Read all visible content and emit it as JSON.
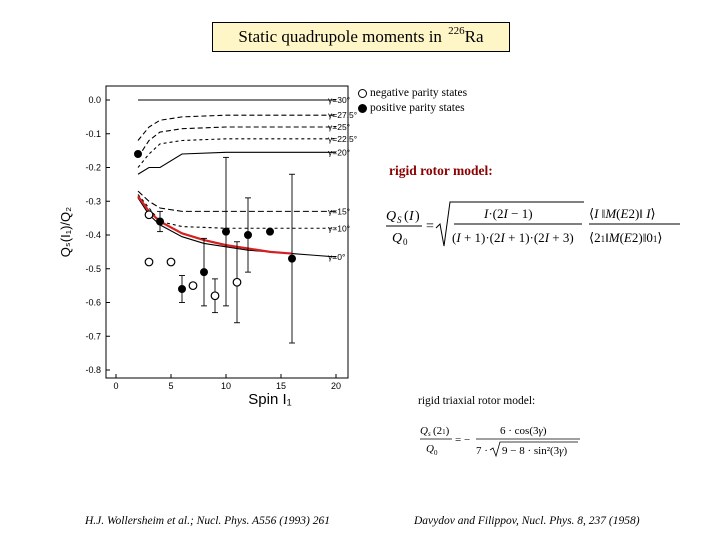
{
  "title": {
    "text": "Static quadrupole moments in",
    "mass": "226",
    "element": "Ra"
  },
  "legend": {
    "open": "negative parity states",
    "filled": "positive parity states"
  },
  "labels": {
    "rigid_rotor": "rigid rotor model:",
    "rigid_triaxial": "rigid triaxial rotor model:"
  },
  "references": {
    "left": "H.J. Wollersheim et al.; Nucl. Phys. A556 (1993) 261",
    "right": "Davydov and Filippov, Nucl. Phys. 8, 237 (1958)"
  },
  "chart_data": {
    "type": "scatter",
    "xlabel": "Spin I₁",
    "ylabel": "Qₛ(I₁)/Q₂",
    "xlim": [
      0,
      20
    ],
    "ylim": [
      -0.8,
      0.0
    ],
    "xticks": [
      0,
      5,
      10,
      15,
      20
    ],
    "yticks": [
      0.0,
      -0.1,
      -0.2,
      -0.3,
      -0.4,
      -0.5,
      -0.6,
      -0.7,
      -0.8
    ],
    "gamma_curves": [
      {
        "label": "γ=30°",
        "x": [
          2,
          20
        ],
        "y": [
          0.0,
          0.0
        ],
        "dash": ""
      },
      {
        "label": "γ=27.5°",
        "x": [
          2,
          3,
          4,
          6,
          10,
          14,
          20
        ],
        "y": [
          -0.12,
          -0.08,
          -0.06,
          -0.05,
          -0.045,
          -0.045,
          -0.045
        ],
        "dash": "5,3"
      },
      {
        "label": "γ=25°",
        "x": [
          2,
          3,
          4,
          6,
          10,
          14,
          20
        ],
        "y": [
          -0.17,
          -0.12,
          -0.095,
          -0.085,
          -0.08,
          -0.08,
          -0.08
        ],
        "dash": "5,3"
      },
      {
        "label": "γ=22.5°",
        "x": [
          2,
          3,
          4,
          6,
          10,
          14,
          20
        ],
        "y": [
          -0.2,
          -0.16,
          -0.13,
          -0.12,
          -0.115,
          -0.115,
          -0.115
        ],
        "dash": "3,3"
      },
      {
        "label": "γ=20°",
        "x": [
          2,
          3,
          4,
          6,
          10,
          14,
          20
        ],
        "y": [
          -0.22,
          -0.2,
          -0.2,
          -0.16,
          -0.155,
          -0.155,
          -0.155
        ],
        "dash": ""
      },
      {
        "label": "γ=15°",
        "x": [
          2,
          3,
          4,
          6,
          10,
          14,
          20
        ],
        "y": [
          -0.27,
          -0.3,
          -0.32,
          -0.33,
          -0.33,
          -0.33,
          -0.33
        ],
        "dash": "6,3"
      },
      {
        "label": "γ=10°",
        "x": [
          2,
          3,
          4,
          6,
          10,
          14,
          20
        ],
        "y": [
          -0.28,
          -0.32,
          -0.36,
          -0.375,
          -0.38,
          -0.38,
          -0.38
        ],
        "dash": "3,3"
      },
      {
        "label": "γ=0°",
        "x": [
          2,
          3,
          4,
          6,
          8,
          10,
          12,
          14,
          16,
          18,
          20
        ],
        "y": [
          -0.29,
          -0.34,
          -0.37,
          -0.405,
          -0.425,
          -0.435,
          -0.445,
          -0.45,
          -0.455,
          -0.46,
          -0.465
        ],
        "dash": ""
      }
    ],
    "rigid_rotor_curve": {
      "x": [
        2,
        3,
        4,
        6,
        8,
        10,
        12,
        14,
        16
      ],
      "y": [
        -0.285,
        -0.33,
        -0.36,
        -0.395,
        -0.415,
        -0.43,
        -0.44,
        -0.45,
        -0.455
      ],
      "color": "#d42020"
    },
    "filled_points": [
      {
        "x": 2,
        "y": -0.16,
        "err": 0.0
      },
      {
        "x": 4,
        "y": -0.36,
        "err": 0.03
      },
      {
        "x": 6,
        "y": -0.56,
        "err": 0.04
      },
      {
        "x": 8,
        "y": -0.51,
        "err": 0.1
      },
      {
        "x": 10,
        "y": -0.39,
        "err": 0.22
      },
      {
        "x": 12,
        "y": -0.4,
        "err": 0.11
      },
      {
        "x": 14,
        "y": -0.39,
        "err": 0.0
      },
      {
        "x": 16,
        "y": -0.47,
        "err": 0.25
      }
    ],
    "open_points": [
      {
        "x": 3,
        "y": -0.34,
        "err": 0.0
      },
      {
        "x": 3,
        "y": -0.48,
        "err": 0.0
      },
      {
        "x": 5,
        "y": -0.48,
        "err": 0.0
      },
      {
        "x": 7,
        "y": -0.55,
        "err": 0.0
      },
      {
        "x": 9,
        "y": -0.58,
        "err": 0.05
      },
      {
        "x": 11,
        "y": -0.54,
        "err": 0.12
      }
    ]
  }
}
